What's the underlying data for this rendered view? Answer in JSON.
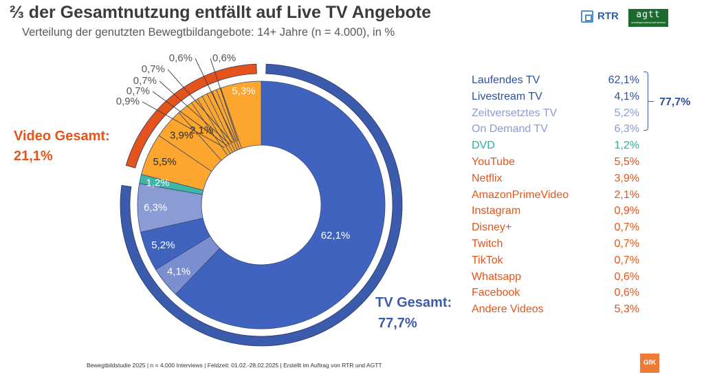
{
  "header": {
    "title": "⅔ der Gesamtnutzung entfällt auf Live TV Angebote",
    "subtitle": "Verteilung der genutzten Bewegtbildangebote: 14+ Jahre (n = 4.000), in %"
  },
  "logos": {
    "rtr": "RTR",
    "agtt": "agtt",
    "agtt_tagline": "arbeitsgemeinschaft teletest",
    "gfk": "GfK"
  },
  "chart_data": {
    "type": "pie",
    "style": "donut with outer group ring",
    "inner_segments": [
      {
        "name": "Laufendes TV",
        "value": 62.1,
        "label": "62,1%",
        "color": "#4063c0"
      },
      {
        "name": "Livestream TV",
        "value": 4.1,
        "label": "4,1%",
        "color": "#7b8fd0"
      },
      {
        "name": "Zeitversetztes TV",
        "value": 5.2,
        "label": "5,2%",
        "color": "#4063c0"
      },
      {
        "name": "On Demand TV",
        "value": 6.3,
        "label": "6,3%",
        "color": "#8b9cd4"
      },
      {
        "name": "DVD",
        "value": 1.2,
        "label": "1,2%",
        "color": "#3db8a5"
      },
      {
        "name": "YouTube",
        "value": 5.5,
        "label": "5,5%",
        "color": "#fca52f"
      },
      {
        "name": "Netflix",
        "value": 3.9,
        "label": "3,9%",
        "color": "#fca52f"
      },
      {
        "name": "AmazonPrimeVideo",
        "value": 2.1,
        "label": "2,1%",
        "color": "#fca52f"
      },
      {
        "name": "Instagram",
        "value": 0.9,
        "label": "0,9%",
        "color": "#fca52f"
      },
      {
        "name": "Disney+",
        "value": 0.7,
        "label": "0,7%",
        "color": "#fca52f"
      },
      {
        "name": "Twitch",
        "value": 0.7,
        "label": "0,7%",
        "color": "#fca52f"
      },
      {
        "name": "TikTok",
        "value": 0.7,
        "label": "0,7%",
        "color": "#fca52f"
      },
      {
        "name": "Whatsapp",
        "value": 0.6,
        "label": "0,6%",
        "color": "#fca52f"
      },
      {
        "name": "Facebook",
        "value": 0.6,
        "label": "0,6%",
        "color": "#fca52f"
      },
      {
        "name": "Andere Videos",
        "value": 5.3,
        "label": "5,3%",
        "color": "#fca52f"
      }
    ],
    "outer_groups": [
      {
        "name": "TV Gesamt:",
        "value": 77.7,
        "label": "77,7%",
        "color": "#3b5cad"
      },
      {
        "name": "Video Gesamt:",
        "value": 21.1,
        "label": "21,1%",
        "color": "#e3531b"
      }
    ],
    "legend": [
      {
        "name": "Laufendes TV",
        "value": "62,1%",
        "color": "#2f4f9e"
      },
      {
        "name": "Livestream TV",
        "value": "4,1%",
        "color": "#2f4f9e"
      },
      {
        "name": "Zeitversetztes TV",
        "value": "5,2%",
        "color": "#8c9bd1"
      },
      {
        "name": "On Demand TV",
        "value": "6,3%",
        "color": "#8c9bd1"
      },
      {
        "name": "DVD",
        "value": "1,2%",
        "color": "#29b3a0"
      },
      {
        "name": "YouTube",
        "value": "5,5%",
        "color": "#e0561c"
      },
      {
        "name": "Netflix",
        "value": "3,9%",
        "color": "#e0561c"
      },
      {
        "name": "AmazonPrimeVideo",
        "value": "2,1%",
        "color": "#e0561c"
      },
      {
        "name": "Instagram",
        "value": "0,9%",
        "color": "#e0561c"
      },
      {
        "name": "Disney+",
        "value": "0,7%",
        "color": "#e0561c"
      },
      {
        "name": "Twitch",
        "value": "0,7%",
        "color": "#e0561c"
      },
      {
        "name": "TikTok",
        "value": "0,7%",
        "color": "#e0561c"
      },
      {
        "name": "Whatsapp",
        "value": "0,6%",
        "color": "#e0561c"
      },
      {
        "name": "Facebook",
        "value": "0,6%",
        "color": "#e0561c"
      },
      {
        "name": "Andere Videos",
        "value": "5,3%",
        "color": "#e0561c"
      }
    ],
    "bracket_total": "77,7%"
  },
  "footer": "Bewegtbildstudie 2025 | n = 4.000 Interviews | Feldzeit: 01.02.-28.02.2025 | Erstellt im Auftrag von RTR und AGTT"
}
